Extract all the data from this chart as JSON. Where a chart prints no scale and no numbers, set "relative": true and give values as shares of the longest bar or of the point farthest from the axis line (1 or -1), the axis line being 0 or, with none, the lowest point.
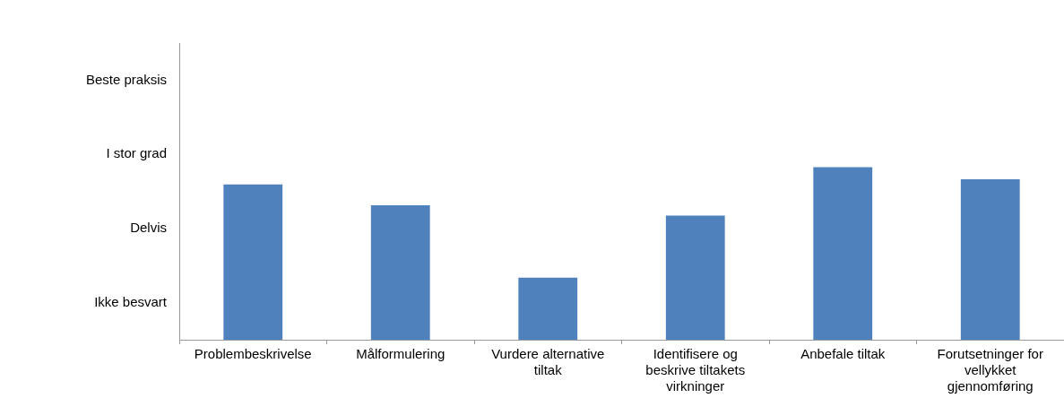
{
  "chart_data": {
    "type": "bar",
    "categories": [
      "Problembeskrivelse",
      "Målformulering",
      "Vurdere alternative tiltak",
      "Identifisere og beskrive tiltakets virkninger",
      "Anbefale tiltak",
      "Forutsetninger for vellykket gjennomføring"
    ],
    "values": [
      0.9,
      0.78,
      0.36,
      0.72,
      1,
      0.93
    ],
    "color": "#4f81bd",
    "relative": true,
    "annotations": [
      "Beste praksis",
      "I stor grad",
      "Delvis",
      "Ikke besvart"
    ],
    "legend": false
  }
}
